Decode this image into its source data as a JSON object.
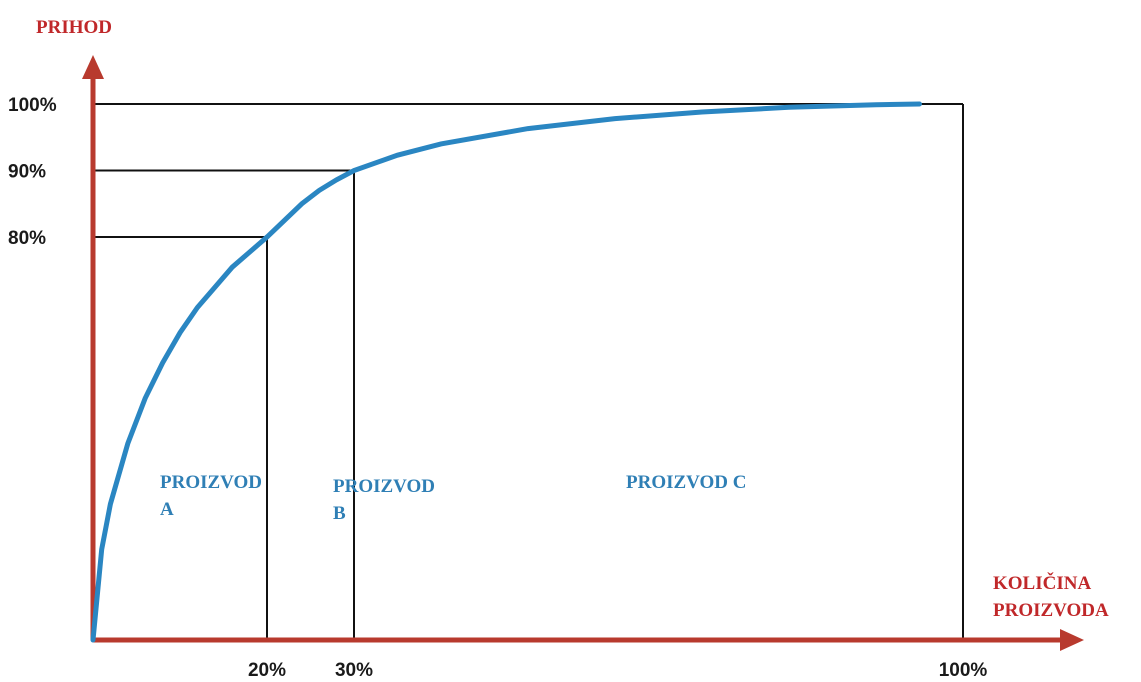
{
  "colors": {
    "axis": "#b83a2e",
    "axis_title": "#c0282a",
    "curve": "#2a86c2",
    "region_label": "#2f7fb5",
    "guide": "#111111"
  },
  "chart_data": {
    "type": "line",
    "title": "",
    "xlabel_lines": [
      "KOLIČINA",
      "PROIZVODA"
    ],
    "ylabel": "PRIHOD",
    "xlim": [
      0,
      100
    ],
    "ylim": [
      0,
      100
    ],
    "y_unit_note": "y axis shows only ticks at 80%, 90%, 100%",
    "x_ticks": [
      {
        "value": 20,
        "label": "20%"
      },
      {
        "value": 30,
        "label": "30%"
      },
      {
        "value": 100,
        "label": "100%"
      }
    ],
    "y_ticks": [
      {
        "value": 80,
        "label": "80%"
      },
      {
        "value": 90,
        "label": "90%"
      },
      {
        "value": 100,
        "label": "100%"
      }
    ],
    "series": [
      {
        "x": [
          0,
          1,
          2,
          4,
          6,
          8,
          10,
          12,
          14,
          16,
          18,
          20,
          22,
          24,
          26,
          28,
          30,
          35,
          40,
          50,
          60,
          70,
          80,
          90,
          95
        ],
        "y": [
          0,
          18,
          27,
          39,
          48,
          55,
          61,
          66,
          70,
          74,
          77,
          80,
          82.5,
          85,
          87,
          88.6,
          90,
          92.3,
          94,
          96.3,
          97.8,
          98.8,
          99.5,
          99.9,
          100
        ]
      }
    ],
    "guides": [
      {
        "x": 20,
        "y": 80
      },
      {
        "x": 30,
        "y": 90
      },
      {
        "x": 100,
        "y": 100
      }
    ],
    "regions": [
      {
        "lines": [
          "PROIZVOD",
          "A"
        ],
        "x_from": 0,
        "x_to": 20
      },
      {
        "lines": [
          "PROIZVOD",
          "B"
        ],
        "x_from": 20,
        "x_to": 30
      },
      {
        "lines": [
          "PROIZVOD C"
        ],
        "x_from": 30,
        "x_to": 100
      }
    ]
  }
}
